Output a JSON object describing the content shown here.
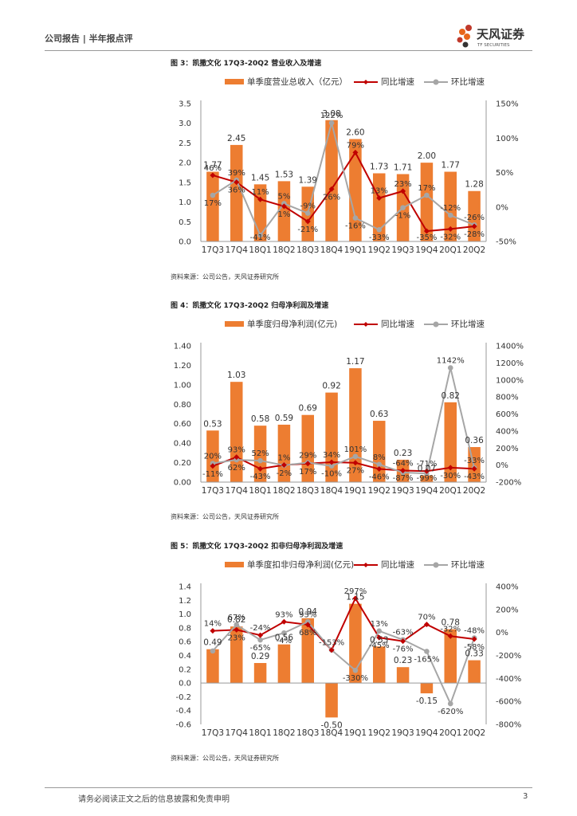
{
  "header": {
    "title": "公司报告 | 半年报点评"
  },
  "logo": {
    "cn": "天风证券",
    "en": "TF SECURITIES"
  },
  "footer": {
    "disclaimer": "请务必阅读正文之后的信息披露和免责申明",
    "page": "3"
  },
  "colors": {
    "bar": "#ED7D31",
    "yoy": "#C00000",
    "qoq": "#A6A6A6"
  },
  "chart_data": [
    {
      "type": "bar",
      "title": "图 3：凯撒文化 17Q3-20Q2 营业收入及增速",
      "source": "资料来源：公司公告，天风证券研究所",
      "legend": [
        "单季度营业总收入（亿元）",
        "同比增速",
        "环比增速"
      ],
      "legend_placement": "top",
      "categories": [
        "17Q3",
        "17Q4",
        "18Q1",
        "18Q2",
        "18Q3",
        "18Q4",
        "19Q1",
        "19Q2",
        "19Q3",
        "19Q4",
        "20Q1",
        "20Q2"
      ],
      "bar_labels": [
        "1.77",
        "2.45",
        "1.45",
        "1.53",
        "1.39",
        "3.08",
        "2.60",
        "1.73",
        "1.71",
        "2.00",
        "1.77",
        "1.28"
      ],
      "yoy_labels": [
        "46%",
        "36%",
        "11%",
        "1%",
        "-21%",
        "26%",
        "79%",
        "13%",
        "23%",
        "-35%",
        "-32%",
        "-28%"
      ],
      "qoq_labels": [
        "17%",
        "39%",
        "-41%",
        "5%",
        "-9%",
        "122%",
        "-16%",
        "-33%",
        "-1%",
        "17%",
        "-12%",
        "-26%"
      ],
      "y_ticks": [
        "0.0",
        "0.5",
        "1.0",
        "1.5",
        "2.0",
        "2.5",
        "3.0",
        "3.5"
      ],
      "y2_ticks": [
        "-50%",
        "0%",
        "50%",
        "100%",
        "150%"
      ],
      "series": [
        {
          "name": "单季度营业总收入（亿元）",
          "kind": "bar",
          "values": [
            1.77,
            2.45,
            1.45,
            1.53,
            1.39,
            3.08,
            2.6,
            1.73,
            1.71,
            2.0,
            1.77,
            1.28
          ]
        },
        {
          "name": "同比增速",
          "kind": "line",
          "values": [
            46,
            36,
            11,
            1,
            -21,
            26,
            79,
            13,
            23,
            -35,
            -32,
            -28
          ]
        },
        {
          "name": "环比增速",
          "kind": "line",
          "values": [
            17,
            39,
            -41,
            5,
            -9,
            122,
            -16,
            -33,
            -1,
            17,
            -12,
            -26
          ]
        }
      ],
      "ylim": [
        0,
        3.5
      ],
      "y2lim": [
        -50,
        150
      ]
    },
    {
      "type": "bar",
      "title": "图 4：凯撒文化 17Q3-20Q2 归母净利润及增速",
      "source": "资料来源：公司公告，天风证券研究所",
      "legend": [
        "单季度归母净利润(亿元)",
        "同比增速",
        "环比增速"
      ],
      "legend_placement": "top",
      "categories": [
        "17Q3",
        "17Q4",
        "18Q1",
        "18Q2",
        "18Q3",
        "18Q4",
        "19Q1",
        "19Q2",
        "19Q3",
        "19Q4",
        "20Q1",
        "20Q2"
      ],
      "bar_labels": [
        "0.53",
        "1.03",
        "0.58",
        "0.59",
        "0.69",
        "0.92",
        "1.17",
        "0.63",
        "0.23",
        "0.07",
        "0.82",
        "0.36"
      ],
      "yoy_labels": [
        "-11%",
        "93%",
        "-43%",
        "1%",
        "17%",
        "34%",
        "27%",
        "-46%",
        "-64%",
        "-71%",
        "-30%",
        "-43%"
      ],
      "qoq_labels": [
        "20%",
        "62%",
        "52%",
        "-2%",
        "29%",
        "-10%",
        "101%",
        "8%",
        "-87%",
        "-99%",
        "1142%",
        "-33%"
      ],
      "y_ticks": [
        "0.00",
        "0.20",
        "0.40",
        "0.60",
        "0.80",
        "1.00",
        "1.20",
        "1.40"
      ],
      "y2_ticks": [
        "-200%",
        "0%",
        "200%",
        "400%",
        "600%",
        "800%",
        "1000%",
        "1200%",
        "1400%"
      ],
      "series": [
        {
          "name": "单季度归母净利润(亿元)",
          "kind": "bar",
          "values": [
            0.53,
            1.03,
            0.58,
            0.59,
            0.69,
            0.92,
            1.17,
            0.63,
            0.23,
            0.07,
            0.82,
            0.36
          ]
        },
        {
          "name": "同比增速",
          "kind": "line",
          "values": [
            -11,
            93,
            -43,
            1,
            17,
            34,
            27,
            -46,
            -64,
            -71,
            -30,
            -43
          ]
        },
        {
          "name": "环比增速",
          "kind": "line",
          "values": [
            20,
            62,
            52,
            -2,
            29,
            -10,
            101,
            8,
            -87,
            -99,
            1142,
            -33
          ]
        }
      ],
      "ylim": [
        0,
        1.4
      ],
      "y2lim": [
        -200,
        1400
      ]
    },
    {
      "type": "bar",
      "title": "图 5：凯撒文化 17Q3-20Q2 扣非归母净利润及增速",
      "source": "资料来源：公司公告，天风证券研究所",
      "legend": [
        "单季度扣非归母净利润(亿元)",
        "同比增速",
        "环比增速"
      ],
      "legend_placement": "top",
      "categories": [
        "17Q3",
        "17Q4",
        "18Q1",
        "18Q2",
        "18Q3",
        "18Q4",
        "19Q1",
        "19Q2",
        "19Q3",
        "19Q4",
        "20Q1",
        "20Q2"
      ],
      "bar_labels": [
        "0.49",
        "0.82",
        "0.29",
        "0.56",
        "0.94",
        "-0.50",
        "1.15",
        "0.53",
        "0.23",
        "-0.15",
        "0.78",
        "0.33"
      ],
      "yoy_labels": [
        "14%",
        "23%",
        "-24%",
        "93%",
        "68%",
        "-153%",
        "297%",
        "-45%",
        "-76%",
        "70%",
        "-32%",
        "-58%"
      ],
      "qoq_labels": [
        "",
        "67%",
        "-65%",
        "-4%",
        "93%",
        "",
        "-330%",
        "13%",
        "-63%",
        "-165%",
        "-620%",
        "-48%"
      ],
      "y_ticks": [
        "-0.6",
        "-0.4",
        "-0.2",
        "0.0",
        "0.2",
        "0.4",
        "0.6",
        "0.8",
        "1.0",
        "1.2",
        "1.4"
      ],
      "y2_ticks": [
        "-800%",
        "-600%",
        "-400%",
        "-200%",
        "0%",
        "200%",
        "400%"
      ],
      "series": [
        {
          "name": "单季度扣非归母净利润(亿元)",
          "kind": "bar",
          "values": [
            0.49,
            0.82,
            0.29,
            0.56,
            0.94,
            -0.5,
            1.15,
            0.53,
            0.23,
            -0.15,
            0.78,
            0.33
          ]
        },
        {
          "name": "同比增速",
          "kind": "line",
          "values": [
            14,
            23,
            -24,
            93,
            68,
            -153,
            297,
            -45,
            -76,
            70,
            -32,
            -58
          ]
        },
        {
          "name": "环比增速",
          "kind": "line",
          "values": [
            -161,
            67,
            -65,
            -4,
            93,
            -153,
            -330,
            13,
            -63,
            -165,
            -620,
            -48
          ]
        }
      ],
      "ylim": [
        -0.6,
        1.4
      ],
      "y2lim": [
        -800,
        400
      ]
    }
  ]
}
